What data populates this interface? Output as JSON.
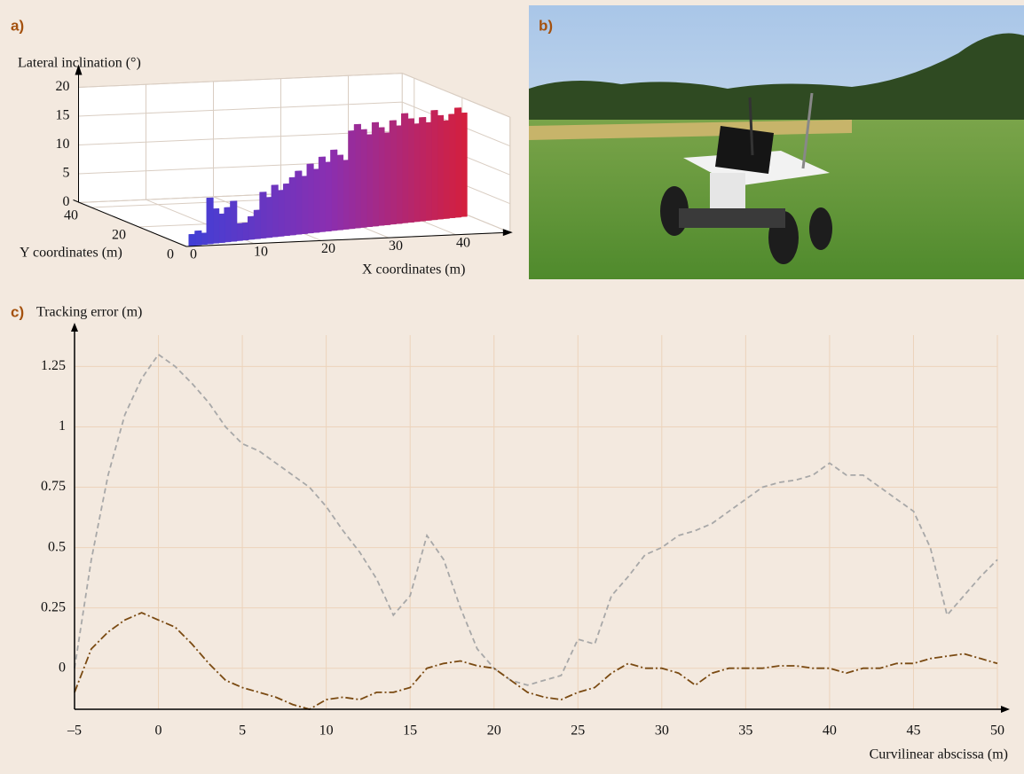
{
  "chart_data": [
    {
      "type": "bar3d",
      "panel_label": "a)",
      "z_label": "Lateral inclination (°)",
      "x_label": "X coordinates (m)",
      "y_label": "Y coordinates (m)",
      "x": [
        1,
        2,
        3,
        4,
        5,
        6,
        7,
        8,
        9,
        10,
        11,
        12,
        13,
        14,
        15,
        16,
        17,
        18,
        19,
        20,
        21,
        22,
        23,
        24,
        25,
        26,
        27,
        28,
        29,
        30,
        31,
        32,
        33,
        34,
        35,
        36,
        37,
        38,
        39,
        40,
        41,
        42,
        43,
        44,
        45,
        46,
        47
      ],
      "y": [
        0.4,
        0.7,
        1.1,
        1.4,
        1.8,
        2.1,
        2.5,
        2.8,
        3.2,
        3.5,
        3.9,
        4.2,
        4.6,
        4.9,
        5.3,
        5.6,
        6,
        6.3,
        6.7,
        7,
        7.4,
        7.7,
        8.1,
        8.4,
        8.8,
        9.1,
        9.5,
        9.8,
        10.2,
        10.5,
        10.9,
        11.2,
        11.6,
        11.9,
        12.3,
        12.6,
        13,
        13.3,
        13.7,
        14,
        14.4,
        14.7,
        15.1,
        15.4,
        15.8,
        16.1,
        16.5
      ],
      "values": [
        2,
        2.5,
        2,
        8,
        6,
        5,
        6,
        7,
        3,
        3,
        4,
        5,
        8,
        7,
        9,
        8,
        9,
        10,
        11,
        10,
        12,
        11,
        13,
        12,
        14,
        13,
        12,
        17,
        18,
        17,
        16,
        18,
        17,
        16,
        18,
        17,
        19,
        18,
        17,
        18,
        17,
        19,
        18,
        17,
        18,
        19,
        18
      ],
      "colormap": [
        "#3f3fd6",
        "#8a2fb0",
        "#d61f3a"
      ],
      "xlim": [
        0,
        48
      ],
      "ylim": [
        0,
        45
      ],
      "zlim": [
        0,
        20
      ],
      "xticks": [
        0,
        10,
        20,
        30,
        40
      ],
      "yticks": [
        0,
        20,
        40
      ],
      "zticks": [
        0,
        5,
        10,
        15,
        20
      ],
      "grid": true
    },
    {
      "type": "line",
      "panel_label": "c)",
      "y_label": "Tracking error (m)",
      "x_label": "Curvilinear abscissa (m)",
      "x": [
        -5,
        -4,
        -3,
        -2,
        -1,
        0,
        1,
        2,
        3,
        4,
        5,
        6,
        7,
        8,
        9,
        10,
        11,
        12,
        13,
        14,
        15,
        16,
        17,
        18,
        19,
        20,
        21,
        22,
        23,
        24,
        25,
        26,
        27,
        28,
        29,
        30,
        31,
        32,
        33,
        34,
        35,
        36,
        37,
        38,
        39,
        40,
        41,
        42,
        43,
        44,
        45,
        46,
        47,
        48,
        49,
        50
      ],
      "series": [
        {
          "color": "#a8a8a8",
          "style": "dashed",
          "values": [
            0,
            0.45,
            0.8,
            1.05,
            1.2,
            1.3,
            1.25,
            1.18,
            1.1,
            1.0,
            0.93,
            0.9,
            0.85,
            0.8,
            0.75,
            0.67,
            0.57,
            0.48,
            0.37,
            0.22,
            0.3,
            0.55,
            0.45,
            0.25,
            0.08,
            0.0,
            -0.05,
            -0.07,
            -0.05,
            -0.03,
            0.12,
            0.1,
            0.3,
            0.38,
            0.47,
            0.5,
            0.55,
            0.57,
            0.6,
            0.65,
            0.7,
            0.75,
            0.77,
            0.78,
            0.8,
            0.85,
            0.8,
            0.8,
            0.75,
            0.7,
            0.65,
            0.5,
            0.22,
            0.3,
            0.38,
            0.45
          ]
        },
        {
          "color": "#7a4a12",
          "style": "dashdot",
          "values": [
            -0.1,
            0.08,
            0.15,
            0.2,
            0.23,
            0.2,
            0.17,
            0.1,
            0.02,
            -0.05,
            -0.08,
            -0.1,
            -0.12,
            -0.15,
            -0.17,
            -0.13,
            -0.12,
            -0.13,
            -0.1,
            -0.1,
            -0.08,
            0.0,
            0.02,
            0.03,
            0.01,
            0.0,
            -0.05,
            -0.1,
            -0.12,
            -0.13,
            -0.1,
            -0.08,
            -0.02,
            0.02,
            0.0,
            0.0,
            -0.02,
            -0.07,
            -0.02,
            0.0,
            0.0,
            0.0,
            0.01,
            0.01,
            0.0,
            0.0,
            -0.02,
            0.0,
            0.0,
            0.02,
            0.02,
            0.04,
            0.05,
            0.06,
            0.04,
            0.02
          ]
        }
      ],
      "xlim": [
        -5,
        50
      ],
      "ylim": [
        -0.17,
        1.38
      ],
      "xticks": [
        {
          "value": -5,
          "label": "–5"
        },
        0,
        5,
        10,
        15,
        20,
        25,
        30,
        35,
        40,
        45,
        50
      ],
      "yticks": [
        0,
        0.25,
        0.5,
        0.75,
        1,
        1.25
      ],
      "grid": true,
      "grid_color": "#ecd3bb"
    }
  ],
  "photo": {
    "panel_label": "b)"
  }
}
